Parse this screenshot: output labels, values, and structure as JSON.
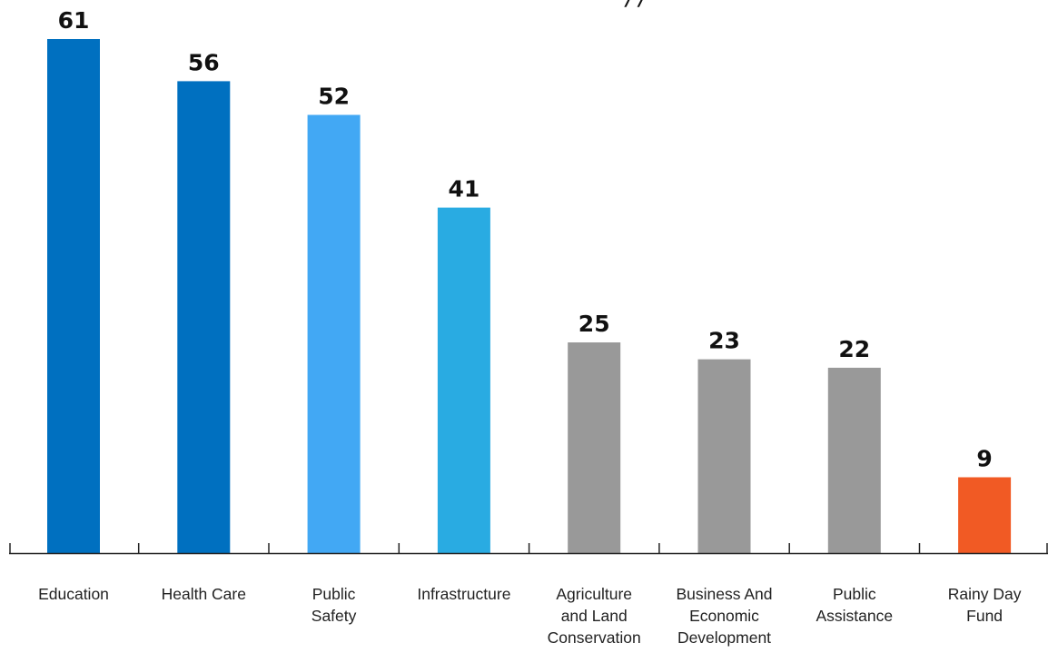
{
  "chart_data": {
    "type": "bar",
    "title_fragment": "/ /",
    "categories": [
      [
        "Education"
      ],
      [
        "Health Care"
      ],
      [
        "Public",
        "Safety"
      ],
      [
        "Infrastructure"
      ],
      [
        "Agriculture",
        "and Land",
        "Conservation"
      ],
      [
        "Business And",
        "Economic",
        "Development"
      ],
      [
        "Public",
        "Assistance"
      ],
      [
        "Rainy Day",
        "Fund"
      ]
    ],
    "values": [
      61,
      56,
      52,
      41,
      25,
      23,
      22,
      9
    ],
    "colors": [
      "#0070c0",
      "#0070c0",
      "#42a8f4",
      "#29abe2",
      "#999999",
      "#999999",
      "#999999",
      "#f15a24"
    ],
    "axis_color": "#222222",
    "ylim": [
      0,
      61
    ]
  }
}
